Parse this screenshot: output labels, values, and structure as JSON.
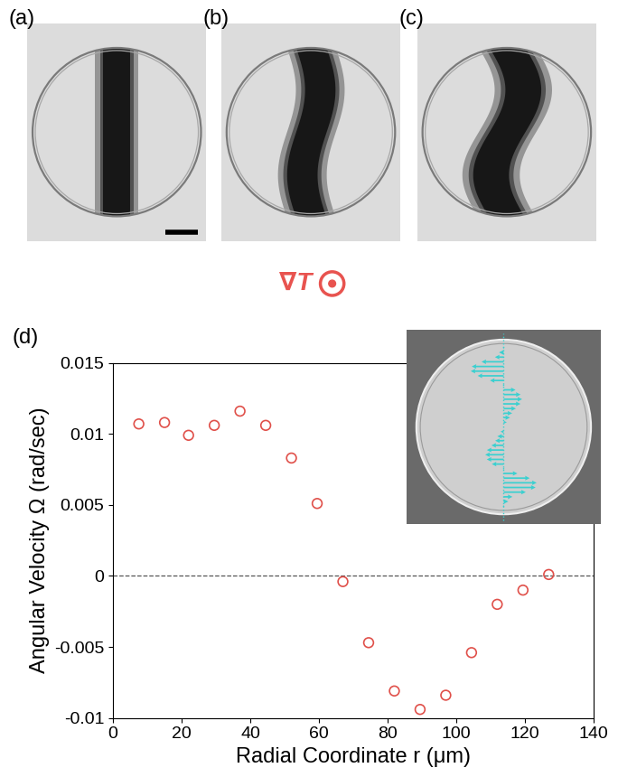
{
  "image_panels": [
    "(a)",
    "(b)",
    "(c)"
  ],
  "gradient_label": "∇T",
  "chart_data": {
    "type": "scatter",
    "panel_label": "(d)",
    "x_label": "Radial Coordinate r (μm)",
    "y_label": "Angular Velocity Ω (rad/sec)",
    "x": [
      7.5,
      15,
      22,
      29.5,
      37,
      44.5,
      52,
      59.5,
      67,
      74.5,
      82,
      89.5,
      97,
      104.5,
      112,
      119.5,
      127
    ],
    "values": [
      0.0107,
      0.0108,
      0.0099,
      0.0106,
      0.0116,
      0.0106,
      0.0083,
      0.0051,
      -0.0004,
      -0.0047,
      -0.0081,
      -0.0094,
      -0.0084,
      -0.0054,
      -0.002,
      -0.001,
      0.0001
    ],
    "color": "#e0504a",
    "marker": "circle",
    "reference_lines": [
      0
    ],
    "xlim": [
      0,
      140
    ],
    "xticks": [
      0,
      20,
      40,
      60,
      80,
      100,
      120,
      140
    ],
    "ylim": [
      -0.01,
      0.015
    ],
    "yticks": [
      -0.01,
      -0.005,
      0,
      0.005,
      0.01,
      0.015
    ]
  }
}
